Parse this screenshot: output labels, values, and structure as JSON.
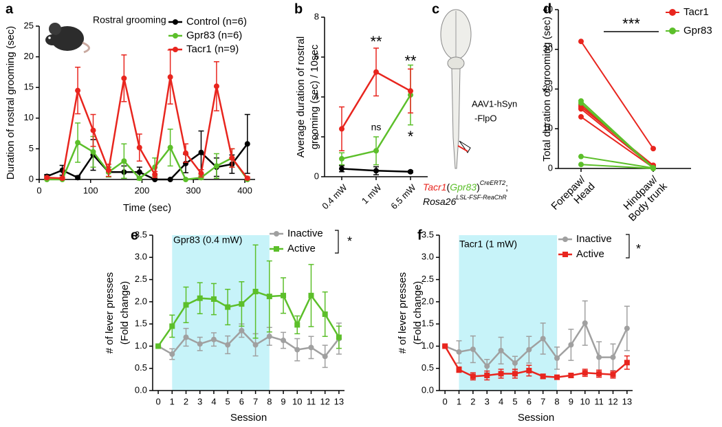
{
  "chart_data": [
    {
      "type": "line",
      "label": "a",
      "xlabel": "Time (sec)",
      "ylabel": [
        "Duration of rostral grooming (sec)"
      ],
      "annotations": [
        "Rostral grooming"
      ],
      "x": [
        15,
        45,
        75,
        105,
        135,
        165,
        195,
        225,
        255,
        285,
        315,
        345,
        375,
        405
      ],
      "xlim": [
        0,
        420
      ],
      "xticks": [
        0,
        100,
        200,
        300,
        400
      ],
      "ylim": [
        0,
        25
      ],
      "yticks": [
        0,
        5,
        10,
        15,
        20,
        25
      ],
      "series": [
        {
          "name": "Control (n=6)",
          "color": "#000000",
          "marker": "circle",
          "values": [
            0.5,
            1.5,
            0.3,
            4,
            1.2,
            1.2,
            1.2,
            0,
            0,
            2.6,
            4.4,
            2,
            2.5,
            5.8
          ],
          "errors": [
            0.3,
            0.8,
            0.3,
            2.5,
            0.8,
            1,
            0.8,
            0,
            0,
            1.5,
            3.5,
            1.5,
            1.5,
            4.8
          ]
        },
        {
          "name": "Gpr83 (n=6)",
          "color": "#5cbf2a",
          "marker": "circle",
          "values": [
            0,
            0,
            6,
            4.5,
            1.2,
            3,
            0.2,
            2,
            5.2,
            0,
            0.3,
            2.2,
            3.5,
            0
          ],
          "errors": [
            0,
            0,
            3.2,
            2.5,
            0.8,
            2.8,
            0.3,
            1.5,
            3,
            0,
            0.3,
            2,
            1.5,
            0
          ]
        },
        {
          "name": "Tacr1 (n=9)",
          "color": "#e8251e",
          "marker": "circle",
          "values": [
            0.3,
            0.2,
            14.5,
            8,
            1.5,
            16.5,
            5.2,
            0.8,
            16.7,
            4.3,
            1,
            15.2,
            3.5,
            0.2
          ],
          "errors": [
            0.2,
            0.2,
            3.8,
            2.6,
            1,
            3.8,
            2.2,
            0.5,
            4.4,
            1.5,
            0.6,
            4,
            1.5,
            0.2
          ]
        }
      ]
    },
    {
      "type": "line",
      "label": "b",
      "ylabel": [
        "Average duration of rostral",
        "grooming (sec) / 10sec"
      ],
      "annotations": [
        "**",
        "ns",
        "**",
        "*"
      ],
      "categories": [
        "0.4 mW",
        "1 mW",
        "6.5 mW"
      ],
      "ylim": [
        0,
        8
      ],
      "yticks": [
        0,
        2,
        4,
        6,
        8
      ],
      "series": [
        {
          "color": "#000000",
          "marker": "circle",
          "values": [
            0.4,
            0.3,
            0.25
          ],
          "errors": [
            0.15,
            0.2,
            0.05
          ]
        },
        {
          "color": "#5cbf2a",
          "marker": "circle",
          "values": [
            0.9,
            1.3,
            4.1
          ],
          "errors": [
            0.3,
            0.7,
            1.5
          ]
        },
        {
          "color": "#e8251e",
          "marker": "circle",
          "values": [
            2.4,
            5.25,
            4.3
          ],
          "errors": [
            1.1,
            1.2,
            1.1
          ]
        }
      ]
    },
    {
      "type": "slope",
      "label": "d",
      "ylabel": [
        "Total duration of grooming (sec)"
      ],
      "annotations": [
        "***"
      ],
      "categories": [
        [
          "Forepaw/",
          "Head"
        ],
        [
          "Hindpaw/",
          "Body trunk"
        ]
      ],
      "ylim": [
        0,
        40
      ],
      "yticks": [
        0,
        10,
        20,
        30,
        40
      ],
      "groups": [
        {
          "name": "Tacr1",
          "color": "#e8251e",
          "subjects": [
            [
              32,
              5
            ],
            [
              16,
              0.5
            ],
            [
              15.5,
              0.8
            ],
            [
              15,
              0.3
            ],
            [
              13,
              0.2
            ]
          ]
        },
        {
          "name": "Gpr83",
          "color": "#5cbf2a",
          "subjects": [
            [
              17,
              0.2
            ],
            [
              16.5,
              0
            ],
            [
              3,
              0.1
            ],
            [
              1,
              0
            ]
          ]
        }
      ]
    },
    {
      "type": "line",
      "label": "e",
      "xlabel": "Session",
      "ylabel": [
        "# of lever presses",
        "(Fold change)"
      ],
      "annotations": [
        "Gpr83 (0.4 mW)",
        "*"
      ],
      "shade": [
        1,
        8
      ],
      "shade_color": "#c7f3f9",
      "x": [
        0,
        1,
        2,
        3,
        4,
        5,
        6,
        7,
        8,
        9,
        10,
        11,
        12,
        13
      ],
      "xlim": [
        -0.4,
        13.4
      ],
      "xticks": [
        0,
        1,
        2,
        3,
        4,
        5,
        6,
        7,
        8,
        9,
        10,
        11,
        12,
        13
      ],
      "ylim": [
        0,
        3.5
      ],
      "yticks": [
        {
          "value": 0,
          "label": "0.0"
        },
        0.5,
        {
          "value": 1,
          "label": "1.0"
        },
        1.5,
        {
          "value": 2,
          "label": "2.0"
        },
        2.5,
        {
          "value": 3,
          "label": "3.0"
        },
        3.5
      ],
      "series": [
        {
          "name": "Inactive",
          "color": "#a0a0a0",
          "marker": "circle",
          "values": [
            1.0,
            0.82,
            1.2,
            1.05,
            1.15,
            1.03,
            1.35,
            1.03,
            1.22,
            1.13,
            0.92,
            0.97,
            0.77,
            1.17
          ],
          "errors": [
            0,
            0.12,
            0.2,
            0.15,
            0.15,
            0.2,
            0.15,
            0.25,
            0.2,
            0.18,
            0.25,
            0.25,
            0.25,
            0.35
          ]
        },
        {
          "name": "Active",
          "color": "#5cbf2a",
          "marker": "square",
          "values": [
            1.0,
            1.45,
            1.93,
            2.08,
            2.06,
            1.88,
            1.95,
            2.23,
            2.12,
            2.14,
            1.48,
            2.14,
            1.72,
            1.2
          ],
          "errors": [
            0,
            0.25,
            0.4,
            0.35,
            0.35,
            0.4,
            0.5,
            1.05,
            0.8,
            0.4,
            0.2,
            0.7,
            0.5,
            0.25
          ]
        }
      ]
    },
    {
      "type": "line",
      "label": "f",
      "xlabel": "Session",
      "ylabel": [
        "# of lever presses",
        "(Fold change)"
      ],
      "annotations": [
        "Tacr1 (1 mW)",
        "*"
      ],
      "shade": [
        1,
        8
      ],
      "shade_color": "#c7f3f9",
      "x": [
        0,
        1,
        2,
        3,
        4,
        5,
        6,
        7,
        8,
        9,
        10,
        11,
        12,
        13
      ],
      "xlim": [
        -0.4,
        13.4
      ],
      "xticks": [
        0,
        1,
        2,
        3,
        4,
        5,
        6,
        7,
        8,
        9,
        10,
        11,
        12,
        13
      ],
      "ylim": [
        0,
        3.5
      ],
      "yticks": [
        {
          "value": 0,
          "label": "0.0"
        },
        0.5,
        {
          "value": 1,
          "label": "1.0"
        },
        1.5,
        {
          "value": 2,
          "label": "2.0"
        },
        2.5,
        {
          "value": 3,
          "label": "3.0"
        },
        3.5
      ],
      "series": [
        {
          "name": "Inactive",
          "color": "#a0a0a0",
          "marker": "circle",
          "values": [
            1.0,
            0.87,
            0.93,
            0.55,
            0.9,
            0.62,
            0.92,
            1.17,
            0.73,
            1.03,
            1.52,
            0.75,
            0.75,
            1.4
          ],
          "errors": [
            0,
            0.25,
            0.3,
            0.15,
            0.3,
            0.15,
            0.3,
            0.35,
            0.25,
            0.35,
            0.5,
            0.35,
            0.3,
            0.5
          ]
        },
        {
          "name": "Active",
          "color": "#e8251e",
          "marker": "square",
          "values": [
            1.0,
            0.47,
            0.32,
            0.34,
            0.38,
            0.38,
            0.45,
            0.32,
            0.3,
            0.34,
            0.4,
            0.38,
            0.36,
            0.63
          ],
          "errors": [
            0,
            0.06,
            0.08,
            0.1,
            0.1,
            0.1,
            0.12,
            0.05,
            0.03,
            0.05,
            0.08,
            0.08,
            0.08,
            0.15
          ]
        }
      ]
    }
  ],
  "diagram": {
    "label": "c",
    "vector": [
      "AAV1-hSyn",
      "-FlpO"
    ],
    "genotype_line1": [
      "Tacr1",
      "(",
      "Gpr83",
      ")",
      "CreERT2",
      ";"
    ],
    "genotype_line2": [
      "Rosa26",
      "LSL-FSF-ReaChR"
    ]
  }
}
